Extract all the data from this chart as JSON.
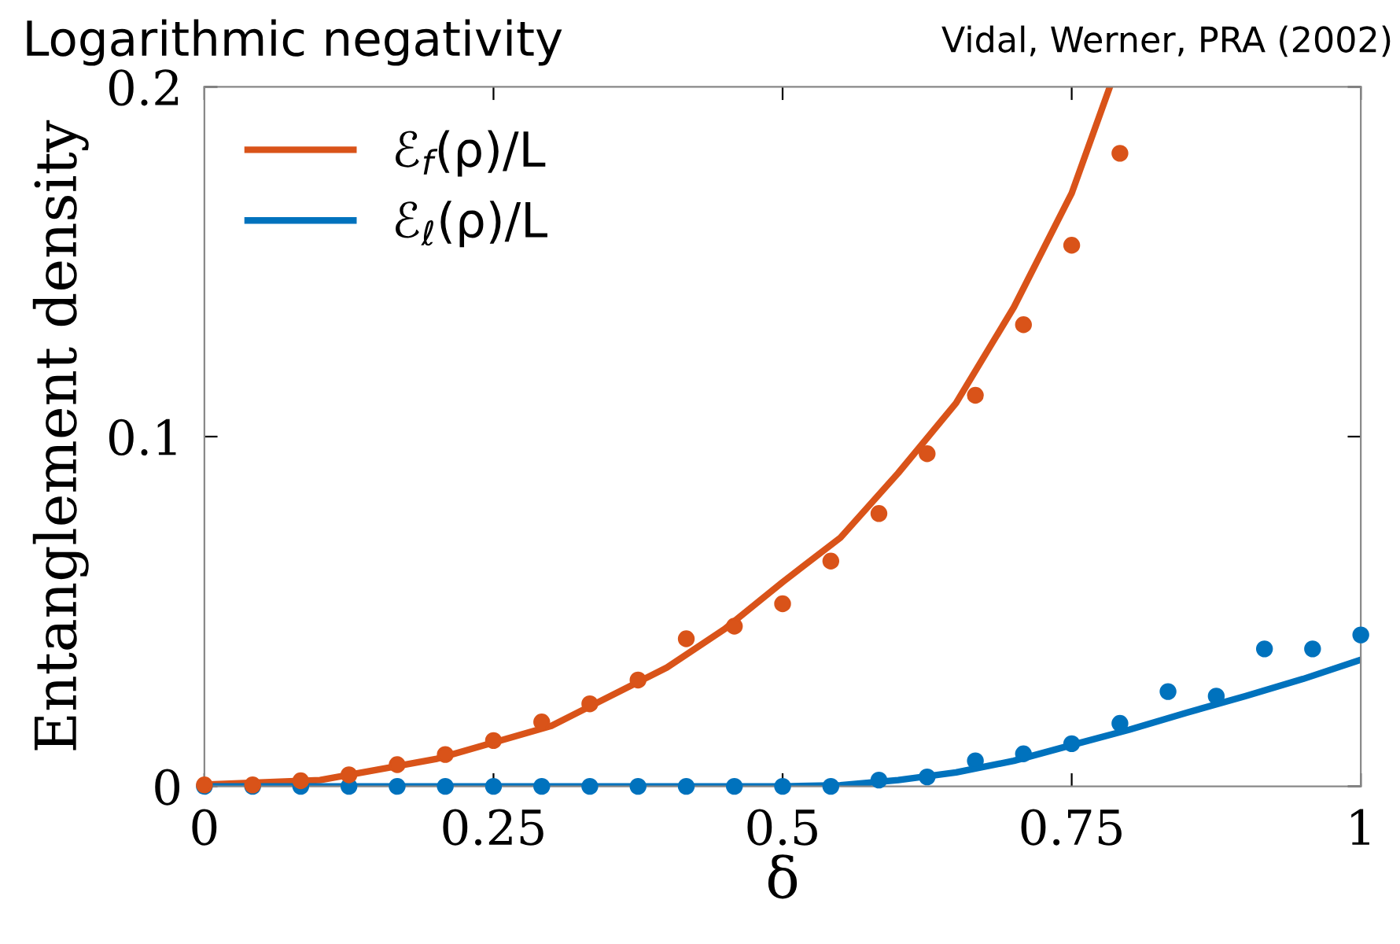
{
  "chart_data": {
    "type": "line",
    "title": "Logarithmic negativity",
    "subtitle": "Vidal, Werner, PRA (2002)",
    "xlabel": "δ",
    "ylabel": "Entanglement density",
    "xlim": [
      0,
      1
    ],
    "ylim": [
      0,
      0.2
    ],
    "xticks": [
      0,
      0.25,
      0.5,
      {
        "value": 0.75,
        "label": "0.75"
      },
      1
    ],
    "yticks": [
      0,
      0.1,
      0.2
    ],
    "grid": false,
    "legend": "top left",
    "series": [
      {
        "name": "ℰ$_{f}$(ρ)/L",
        "color": "#d95319",
        "marker": "none",
        "x": [
          0,
          0.1,
          0.2,
          0.3,
          0.4,
          0.45,
          0.5,
          0.55,
          0.6,
          0.65,
          0.7,
          0.75,
          0.783
        ],
        "values": [
          0.0005,
          0.0018,
          0.0078,
          0.0173,
          0.034,
          0.045,
          0.0584,
          0.0711,
          0.0896,
          0.1096,
          0.137,
          0.1696,
          0.2
        ]
      },
      {
        "name": "ℰ$_{ℓ}$(ρ)/L",
        "color": "#0072bd",
        "marker": "none",
        "x": [
          0,
          0.1,
          0.2,
          0.3,
          0.4,
          0.5,
          0.55,
          0.6,
          0.65,
          0.7,
          0.75,
          0.8,
          0.85,
          0.9,
          0.95,
          1.0
        ],
        "values": [
          0,
          0,
          0,
          0,
          0,
          0,
          0.0003,
          0.0018,
          0.004,
          0.0073,
          0.0118,
          0.0162,
          0.0211,
          0.0258,
          0.0307,
          0.0362
        ]
      },
      {
        "type": "scatter",
        "color": "#d95319",
        "marker": "circle",
        "x": [
          0,
          0.0417,
          0.0833,
          0.125,
          0.1667,
          0.2083,
          0.25,
          0.2917,
          0.3333,
          0.375,
          0.4167,
          0.4583,
          0.5,
          0.5417,
          0.5833,
          0.625,
          0.6667,
          0.7083,
          0.75,
          0.7917
        ],
        "values": [
          0.0004,
          0.0004,
          0.0016,
          0.0033,
          0.0062,
          0.0091,
          0.0131,
          0.0184,
          0.0236,
          0.0304,
          0.0422,
          0.0458,
          0.0522,
          0.0644,
          0.078,
          0.0951,
          0.1118,
          0.132,
          0.1547,
          0.181
        ]
      },
      {
        "type": "scatter",
        "color": "#0072bd",
        "marker": "circle",
        "x": [
          0,
          0.0417,
          0.0833,
          0.125,
          0.1667,
          0.2083,
          0.25,
          0.2917,
          0.3333,
          0.375,
          0.4167,
          0.4583,
          0.5,
          0.5417,
          0.5833,
          0.625,
          0.6667,
          0.7083,
          0.75,
          0.7917,
          0.8333,
          0.875,
          0.9167,
          0.9583,
          1.0
        ],
        "values": [
          0,
          0,
          0,
          0,
          0,
          0,
          0,
          0,
          0,
          0,
          0,
          0,
          0,
          0,
          0.0018,
          0.0027,
          0.0073,
          0.0093,
          0.0122,
          0.018,
          0.0271,
          0.0258,
          0.0393,
          0.0393,
          0.0433
        ]
      }
    ]
  }
}
